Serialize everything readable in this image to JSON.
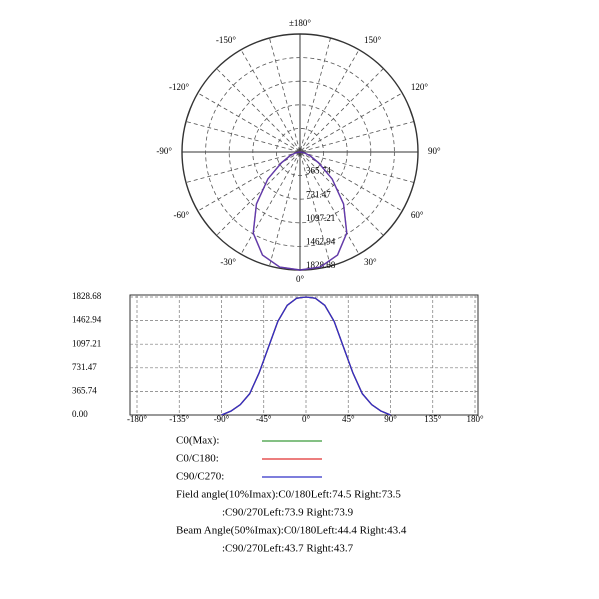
{
  "chart_data": [
    {
      "type": "polar",
      "x": [
        -90,
        -80,
        -70,
        -60,
        -50,
        -40,
        -30,
        -20,
        -10,
        0,
        10,
        20,
        30,
        40,
        50,
        60,
        70,
        80,
        90
      ],
      "series": [
        {
          "color": "#e03030",
          "values": [
            0,
            60,
            160,
            330,
            650,
            1050,
            1450,
            1700,
            1810,
            1828.68,
            1810,
            1700,
            1450,
            1050,
            650,
            330,
            160,
            60,
            0
          ]
        },
        {
          "color": "#3030c8",
          "values": [
            0,
            60,
            160,
            330,
            650,
            1050,
            1450,
            1700,
            1810,
            1828.68,
            1810,
            1700,
            1450,
            1050,
            650,
            330,
            160,
            60,
            0
          ]
        }
      ],
      "rlim": [
        0,
        1828.68
      ],
      "rticks": [
        365.74,
        731.47,
        1097.21,
        1462.94,
        1828.68
      ],
      "angle_ticks": [
        {
          "value": 180,
          "label": "±180°"
        },
        {
          "value": -150,
          "label": "-150°"
        },
        {
          "value": 150,
          "label": "150°"
        },
        {
          "value": -120,
          "label": "-120°"
        },
        {
          "value": 120,
          "label": "120°"
        },
        {
          "value": -90,
          "label": "-90°"
        },
        {
          "value": 90,
          "label": "90°"
        },
        {
          "value": -60,
          "label": "-60°"
        },
        {
          "value": 60,
          "label": "60°"
        },
        {
          "value": -30,
          "label": "-30°"
        },
        {
          "value": 30,
          "label": "30°"
        },
        {
          "value": 0,
          "label": "0°"
        }
      ]
    },
    {
      "type": "line",
      "x": [
        -90,
        -80,
        -70,
        -60,
        -50,
        -40,
        -30,
        -20,
        -10,
        0,
        10,
        20,
        30,
        40,
        50,
        60,
        70,
        80,
        90
      ],
      "series": [
        {
          "name": "C0(Max):",
          "color": "#3a9a3a",
          "values": [
            0,
            60,
            160,
            330,
            650,
            1050,
            1450,
            1700,
            1810,
            1828.68,
            1810,
            1700,
            1450,
            1050,
            650,
            330,
            160,
            60,
            0
          ]
        },
        {
          "name": "C0/C180:",
          "color": "#e03030",
          "values": [
            0,
            60,
            160,
            330,
            650,
            1050,
            1450,
            1700,
            1810,
            1828.68,
            1810,
            1700,
            1450,
            1050,
            650,
            330,
            160,
            60,
            0
          ]
        },
        {
          "name": "C90/C270:",
          "color": "#3030c8",
          "values": [
            0,
            60,
            160,
            330,
            650,
            1050,
            1450,
            1700,
            1810,
            1828.68,
            1810,
            1700,
            1450,
            1050,
            650,
            330,
            160,
            60,
            0
          ]
        }
      ],
      "xlim": [
        -180,
        180
      ],
      "xticks": [
        {
          "value": -180,
          "label": "-180°"
        },
        {
          "value": -135,
          "label": "-135°"
        },
        {
          "value": -90,
          "label": "-90°"
        },
        {
          "value": -45,
          "label": "-45°"
        },
        {
          "value": 0,
          "label": "0°"
        },
        {
          "value": 45,
          "label": "45°"
        },
        {
          "value": 90,
          "label": "90°"
        },
        {
          "value": 135,
          "label": "135°"
        },
        {
          "value": 180,
          "label": "180°"
        }
      ],
      "ylim": [
        0,
        1828.68
      ],
      "yticks": [
        {
          "value": 0,
          "label": "0.00"
        },
        365.74,
        731.47,
        1097.21,
        1462.94,
        1828.68
      ],
      "grid": true,
      "annotations": [
        "Field angle(10%Imax):C0/180Left:74.5 Right:73.5",
        ":C90/270Left:73.9 Right:73.9",
        "Beam Angle(50%Imax):C0/180Left:44.4 Right:43.4",
        ":C90/270Left:43.7 Right:43.7"
      ]
    }
  ]
}
